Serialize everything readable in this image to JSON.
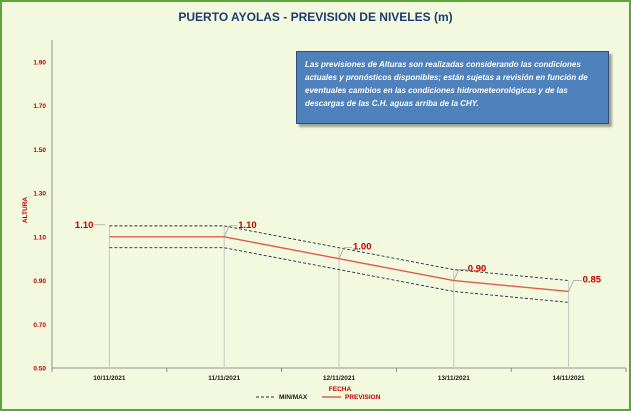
{
  "chart_data": {
    "type": "line",
    "title": "PUERTO AYOLAS - PREVISION DE NIVELES (m)",
    "xlabel": "FECHA",
    "ylabel": "ALTURA",
    "x": [
      "10/11/2021",
      "11/11/2021",
      "12/11/2021",
      "13/11/2021",
      "14/11/2021"
    ],
    "ylim": [
      0.5,
      2.0
    ],
    "yticks": [
      "0.50",
      "0.70",
      "0.90",
      "1.10",
      "1.30",
      "1.50",
      "1.70",
      "1.90"
    ],
    "series": [
      {
        "name": "PREVISION",
        "values": [
          1.1,
          1.1,
          1.0,
          0.9,
          0.85
        ],
        "color": "#e05a50",
        "style": "solid",
        "labels": [
          "1.10",
          "1.10",
          "1.00",
          "0.90",
          "0.85"
        ]
      },
      {
        "name": "MIN/MAX",
        "role": "max",
        "values": [
          1.15,
          1.15,
          1.05,
          0.95,
          0.9
        ],
        "color": "#1f2d50",
        "style": "dashed"
      },
      {
        "name": "",
        "role": "min",
        "values": [
          1.05,
          1.05,
          0.95,
          0.85,
          0.8
        ],
        "color": "#1f2d50",
        "style": "dashed"
      }
    ],
    "grid": false,
    "legend": "bottom",
    "note": "Las previsiones de Alturas son realizadas considerando las condiciones actuales y pronósticos disponibles; están sujetas a revisión en función de eventuales cambios en las condiciones hidrometeorológicas y de las descargas de las C.H. aguas arriba de la CHY."
  }
}
